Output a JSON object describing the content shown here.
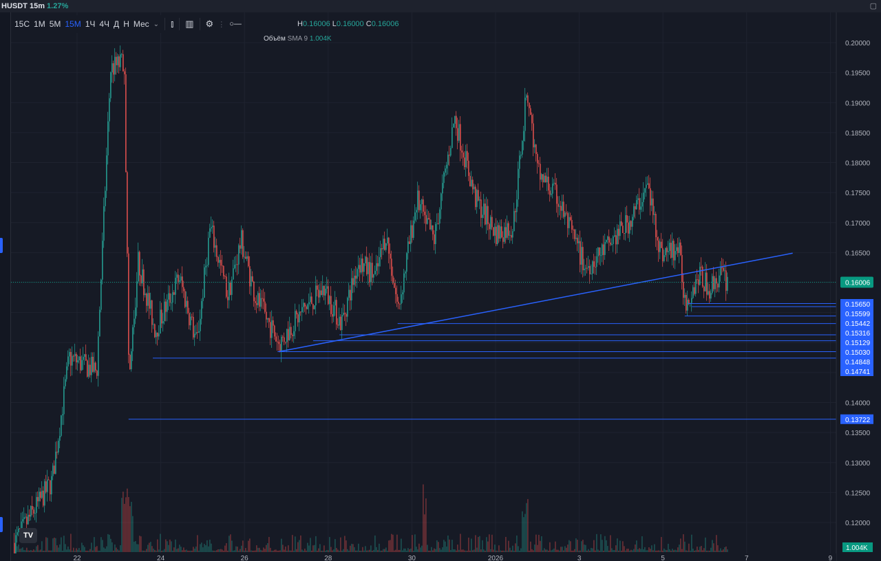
{
  "header": {
    "symbol": "HUSDT",
    "interval": "15m",
    "change": "1.27%"
  },
  "toolbar": {
    "timeframes": [
      "15С",
      "1М",
      "5М",
      "15М",
      "1Ч",
      "4Ч",
      "Д",
      "Н",
      "Мес"
    ],
    "active": "15М"
  },
  "legend": {
    "h_label": "H",
    "h": "0.16006",
    "l_label": "L",
    "l": "0.16000",
    "c_label": "C",
    "c": "0.16006",
    "volume_label": "Объём",
    "sma_label": "SMA 9",
    "volume_value": "1.004K"
  },
  "logo_text": "TV",
  "chart_data": {
    "type": "candlestick",
    "colors": {
      "up": "#26a69a",
      "down": "#ef5350",
      "line": "#2962ff",
      "last": "#089981"
    },
    "price_ticks": [
      "0.20000",
      "0.19500",
      "0.19000",
      "0.18500",
      "0.18000",
      "0.17500",
      "0.17000",
      "0.16500",
      "0.14000",
      "0.13500",
      "0.13000",
      "0.12500",
      "0.12000"
    ],
    "ylim": [
      0.1166,
      0.2036
    ],
    "time_ticks": [
      {
        "label": "22",
        "day": 0
      },
      {
        "label": "24",
        "day": 2
      },
      {
        "label": "26",
        "day": 4
      },
      {
        "label": "28",
        "day": 6
      },
      {
        "label": "30",
        "day": 8
      },
      {
        "label": "2026",
        "day": 10
      },
      {
        "label": "3",
        "day": 12
      },
      {
        "label": "5",
        "day": 14
      },
      {
        "label": "7",
        "day": 16
      },
      {
        "label": "9",
        "day": 18
      }
    ],
    "price_path": [
      [
        -1.51,
        0.1166
      ],
      [
        -0.61,
        0.1269
      ],
      [
        -0.2,
        0.1475
      ],
      [
        0.46,
        0.1452
      ],
      [
        0.79,
        0.1956
      ],
      [
        1.12,
        0.1968
      ],
      [
        1.23,
        0.143
      ],
      [
        1.45,
        0.1635
      ],
      [
        1.86,
        0.152
      ],
      [
        2.43,
        0.161
      ],
      [
        2.85,
        0.1498
      ],
      [
        3.17,
        0.1693
      ],
      [
        3.59,
        0.1578
      ],
      [
        3.91,
        0.167
      ],
      [
        4.24,
        0.1578
      ],
      [
        4.82,
        0.1498
      ],
      [
        5.39,
        0.1555
      ],
      [
        5.89,
        0.159
      ],
      [
        6.3,
        0.1532
      ],
      [
        6.71,
        0.1635
      ],
      [
        7.12,
        0.161
      ],
      [
        7.37,
        0.1682
      ],
      [
        7.66,
        0.1555
      ],
      [
        8.11,
        0.1739
      ],
      [
        8.52,
        0.167
      ],
      [
        9.01,
        0.1876
      ],
      [
        9.51,
        0.1739
      ],
      [
        10.0,
        0.1682
      ],
      [
        10.41,
        0.1693
      ],
      [
        10.74,
        0.1922
      ],
      [
        10.99,
        0.1785
      ],
      [
        11.48,
        0.1739
      ],
      [
        12.14,
        0.1624
      ],
      [
        12.63,
        0.1658
      ],
      [
        13.21,
        0.1704
      ],
      [
        13.62,
        0.1762
      ],
      [
        13.95,
        0.1647
      ],
      [
        14.36,
        0.1658
      ],
      [
        14.52,
        0.1567
      ],
      [
        14.85,
        0.1613
      ],
      [
        15.1,
        0.159
      ],
      [
        15.35,
        0.1613
      ],
      [
        15.56,
        0.16006
      ]
    ],
    "last_price": "0.16006",
    "last_volume": "1.004K",
    "trendline": [
      [
        4.82,
        0.14848
      ],
      [
        17.1,
        0.1649
      ]
    ],
    "levels": [
      {
        "price": 0.1565,
        "label": "0.15650",
        "from_day": 14.6
      },
      {
        "price": 0.15599,
        "label": "0.15599",
        "from_day": 14.69
      },
      {
        "price": 0.15442,
        "label": "0.15442",
        "from_day": 14.52
      },
      {
        "price": 0.15316,
        "label": "0.15316",
        "from_day": 7.66
      },
      {
        "price": 0.15129,
        "label": "0.15129",
        "from_day": 6.27
      },
      {
        "price": 0.1503,
        "label": "0.15030",
        "from_day": 5.64
      },
      {
        "price": 0.14848,
        "label": "0.14848",
        "from_day": 4.79
      },
      {
        "price": 0.14741,
        "label": "0.14741",
        "from_day": 1.81
      },
      {
        "price": 0.13722,
        "label": "0.13722",
        "from_day": 1.23
      }
    ]
  }
}
